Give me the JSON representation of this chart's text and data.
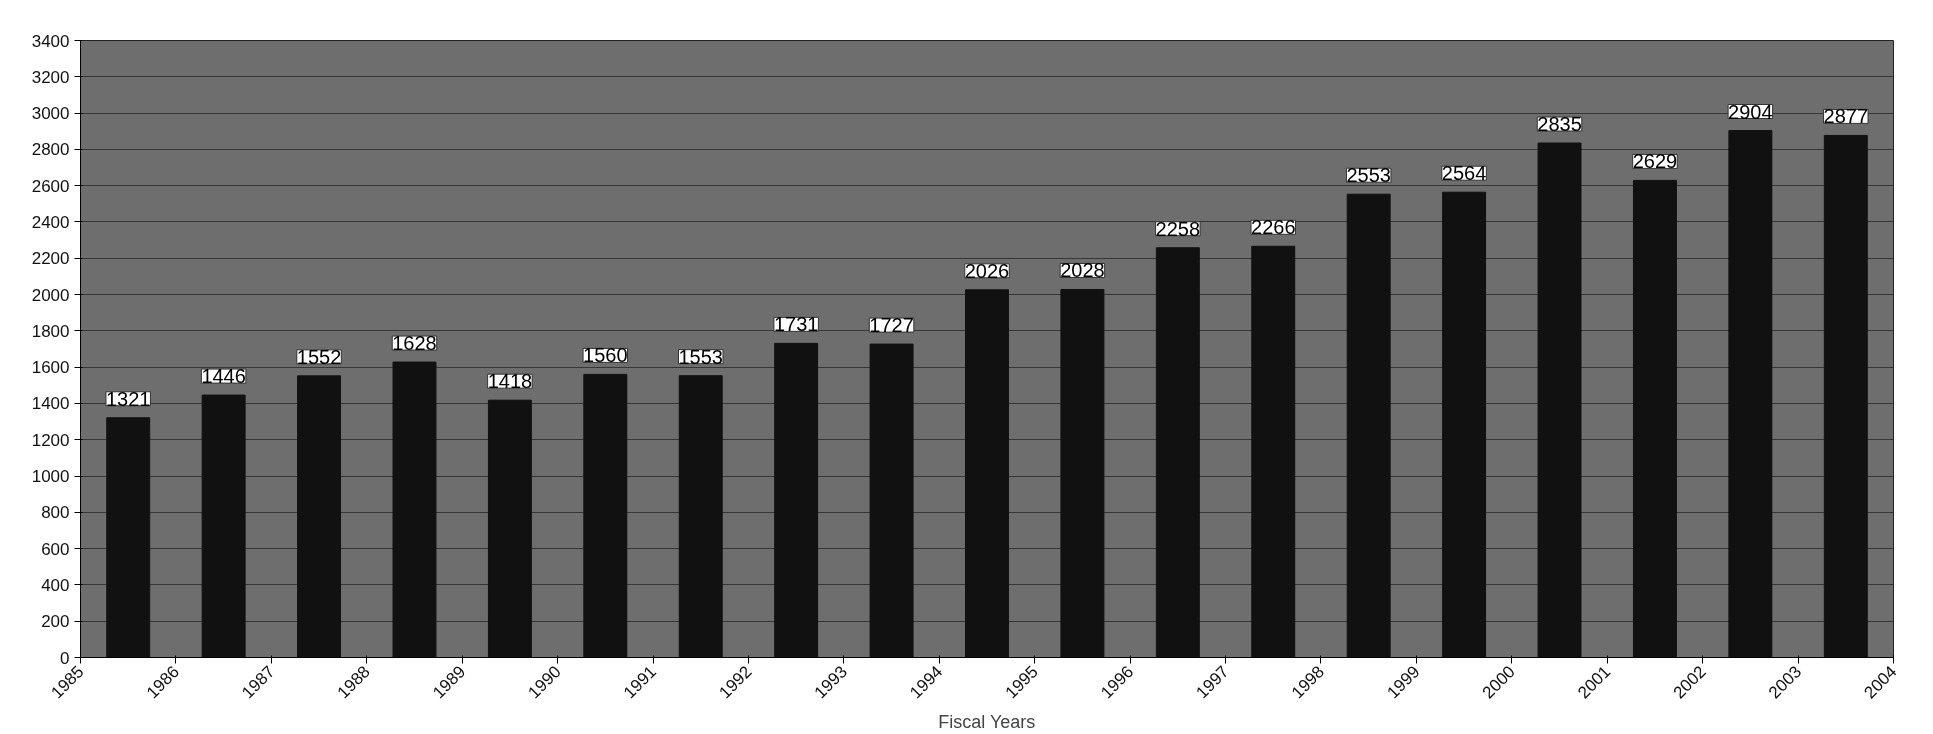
{
  "chart_data": {
    "type": "bar",
    "xlabel": "Fiscal Years",
    "x": [
      1985.5,
      1986.5,
      1987.5,
      1988.5,
      1989.5,
      1990.5,
      1991.5,
      1992.5,
      1993.5,
      1994.5,
      1995.5,
      1996.5,
      1997.5,
      1998.5,
      1999.5,
      2000.5,
      2001.5,
      2002.5,
      2003.5
    ],
    "values": [
      1321,
      1446,
      1552,
      1628,
      1418,
      1560,
      1553,
      1731,
      1727,
      2026,
      2028,
      2258,
      2266,
      2553,
      2564,
      2835,
      2629,
      2904,
      2877
    ],
    "color": "#111111",
    "data_labels": true,
    "xlim": [
      1985,
      2004
    ],
    "xticks": [
      1985,
      1986,
      1987,
      1988,
      1989,
      1990,
      1991,
      1992,
      1993,
      1994,
      1995,
      1996,
      1997,
      1998,
      1999,
      2000,
      2001,
      2002,
      2003,
      2004
    ],
    "ylim": [
      0,
      3400
    ],
    "yticks": [
      0,
      200,
      400,
      600,
      800,
      1000,
      1200,
      1400,
      1600,
      1800,
      2000,
      2200,
      2400,
      2600,
      2800,
      3000,
      3200,
      3400
    ],
    "grid": "y"
  }
}
